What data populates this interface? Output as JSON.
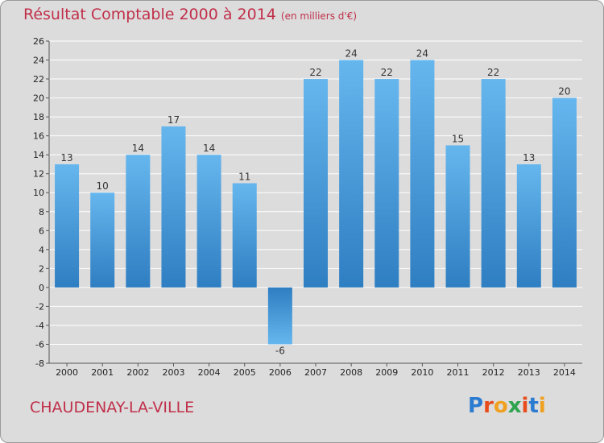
{
  "header": {
    "title": "Résultat Comptable 2000 à 2014",
    "unit": "(en milliers d'€)"
  },
  "footer": {
    "commune": "CHAUDENAY-LA-VILLE",
    "logo_letters": [
      "P",
      "r",
      "o",
      "x",
      "i",
      "t",
      "i"
    ],
    "logo_colors": [
      "#2b7bd0",
      "#e74c1c",
      "#f0a020",
      "#2ea44f",
      "#e74c1c",
      "#2b7bd0",
      "#f0a020"
    ]
  },
  "colors": {
    "bar_light": "#66b6ee",
    "bar_dark": "#2e7ec2",
    "title": "#c0304a"
  },
  "chart_data": {
    "type": "bar",
    "title": "Résultat Comptable 2000 à 2014",
    "ylabel": "(en milliers d'€)",
    "xlabel": "",
    "categories": [
      "2000",
      "2001",
      "2002",
      "2003",
      "2004",
      "2005",
      "2006",
      "2007",
      "2008",
      "2009",
      "2010",
      "2011",
      "2012",
      "2013",
      "2014"
    ],
    "values": [
      13,
      10,
      14,
      17,
      14,
      11,
      -6,
      22,
      24,
      22,
      24,
      15,
      22,
      13,
      20
    ],
    "ylim": [
      -8,
      26
    ],
    "yticks": [
      -8,
      -6,
      -4,
      -2,
      0,
      2,
      4,
      6,
      8,
      10,
      12,
      14,
      16,
      18,
      20,
      22,
      24,
      26
    ],
    "grid": true
  }
}
